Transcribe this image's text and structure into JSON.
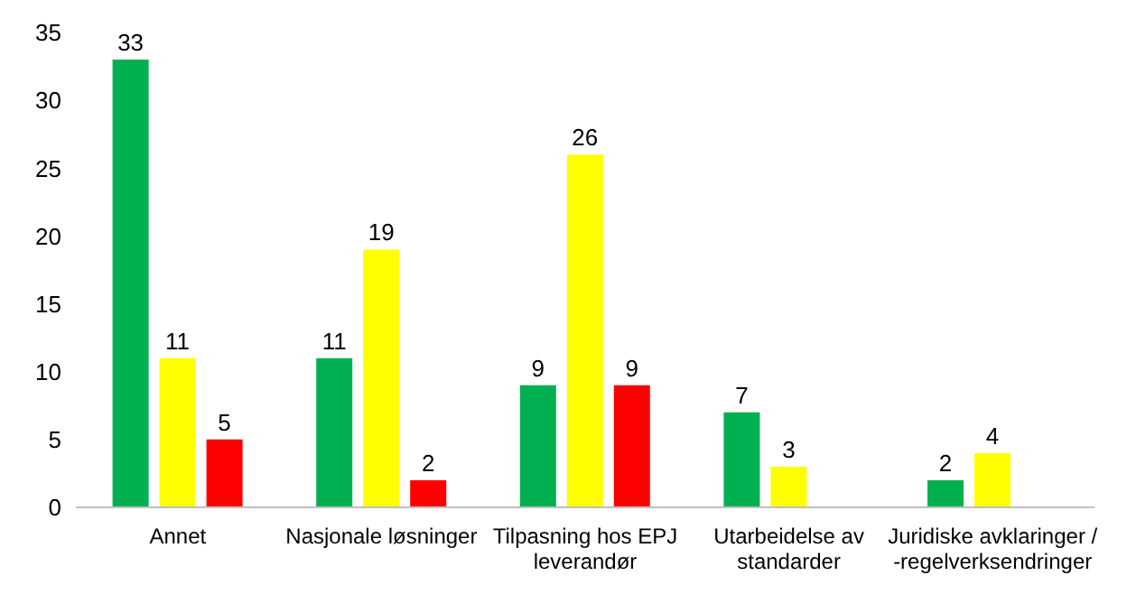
{
  "chart_data": {
    "type": "bar",
    "categories": [
      "Annet",
      "Nasjonale løsninger",
      "Tilpasning hos EPJ leverandør",
      "Utarbeidelse av standarder",
      "Juridiske avklaringer / -regelverksendringer"
    ],
    "series": [
      {
        "color": "#00b050",
        "values": [
          33,
          11,
          9,
          7,
          2
        ]
      },
      {
        "color": "#ffff00",
        "values": [
          11,
          19,
          26,
          3,
          4
        ]
      },
      {
        "color": "#ff0000",
        "values": [
          5,
          2,
          9,
          null,
          null
        ]
      }
    ],
    "ylim": [
      0,
      35
    ],
    "yticks": [
      0,
      5,
      10,
      15,
      20,
      25,
      30,
      35
    ],
    "grid": false,
    "legend": false,
    "data_labels": true
  }
}
